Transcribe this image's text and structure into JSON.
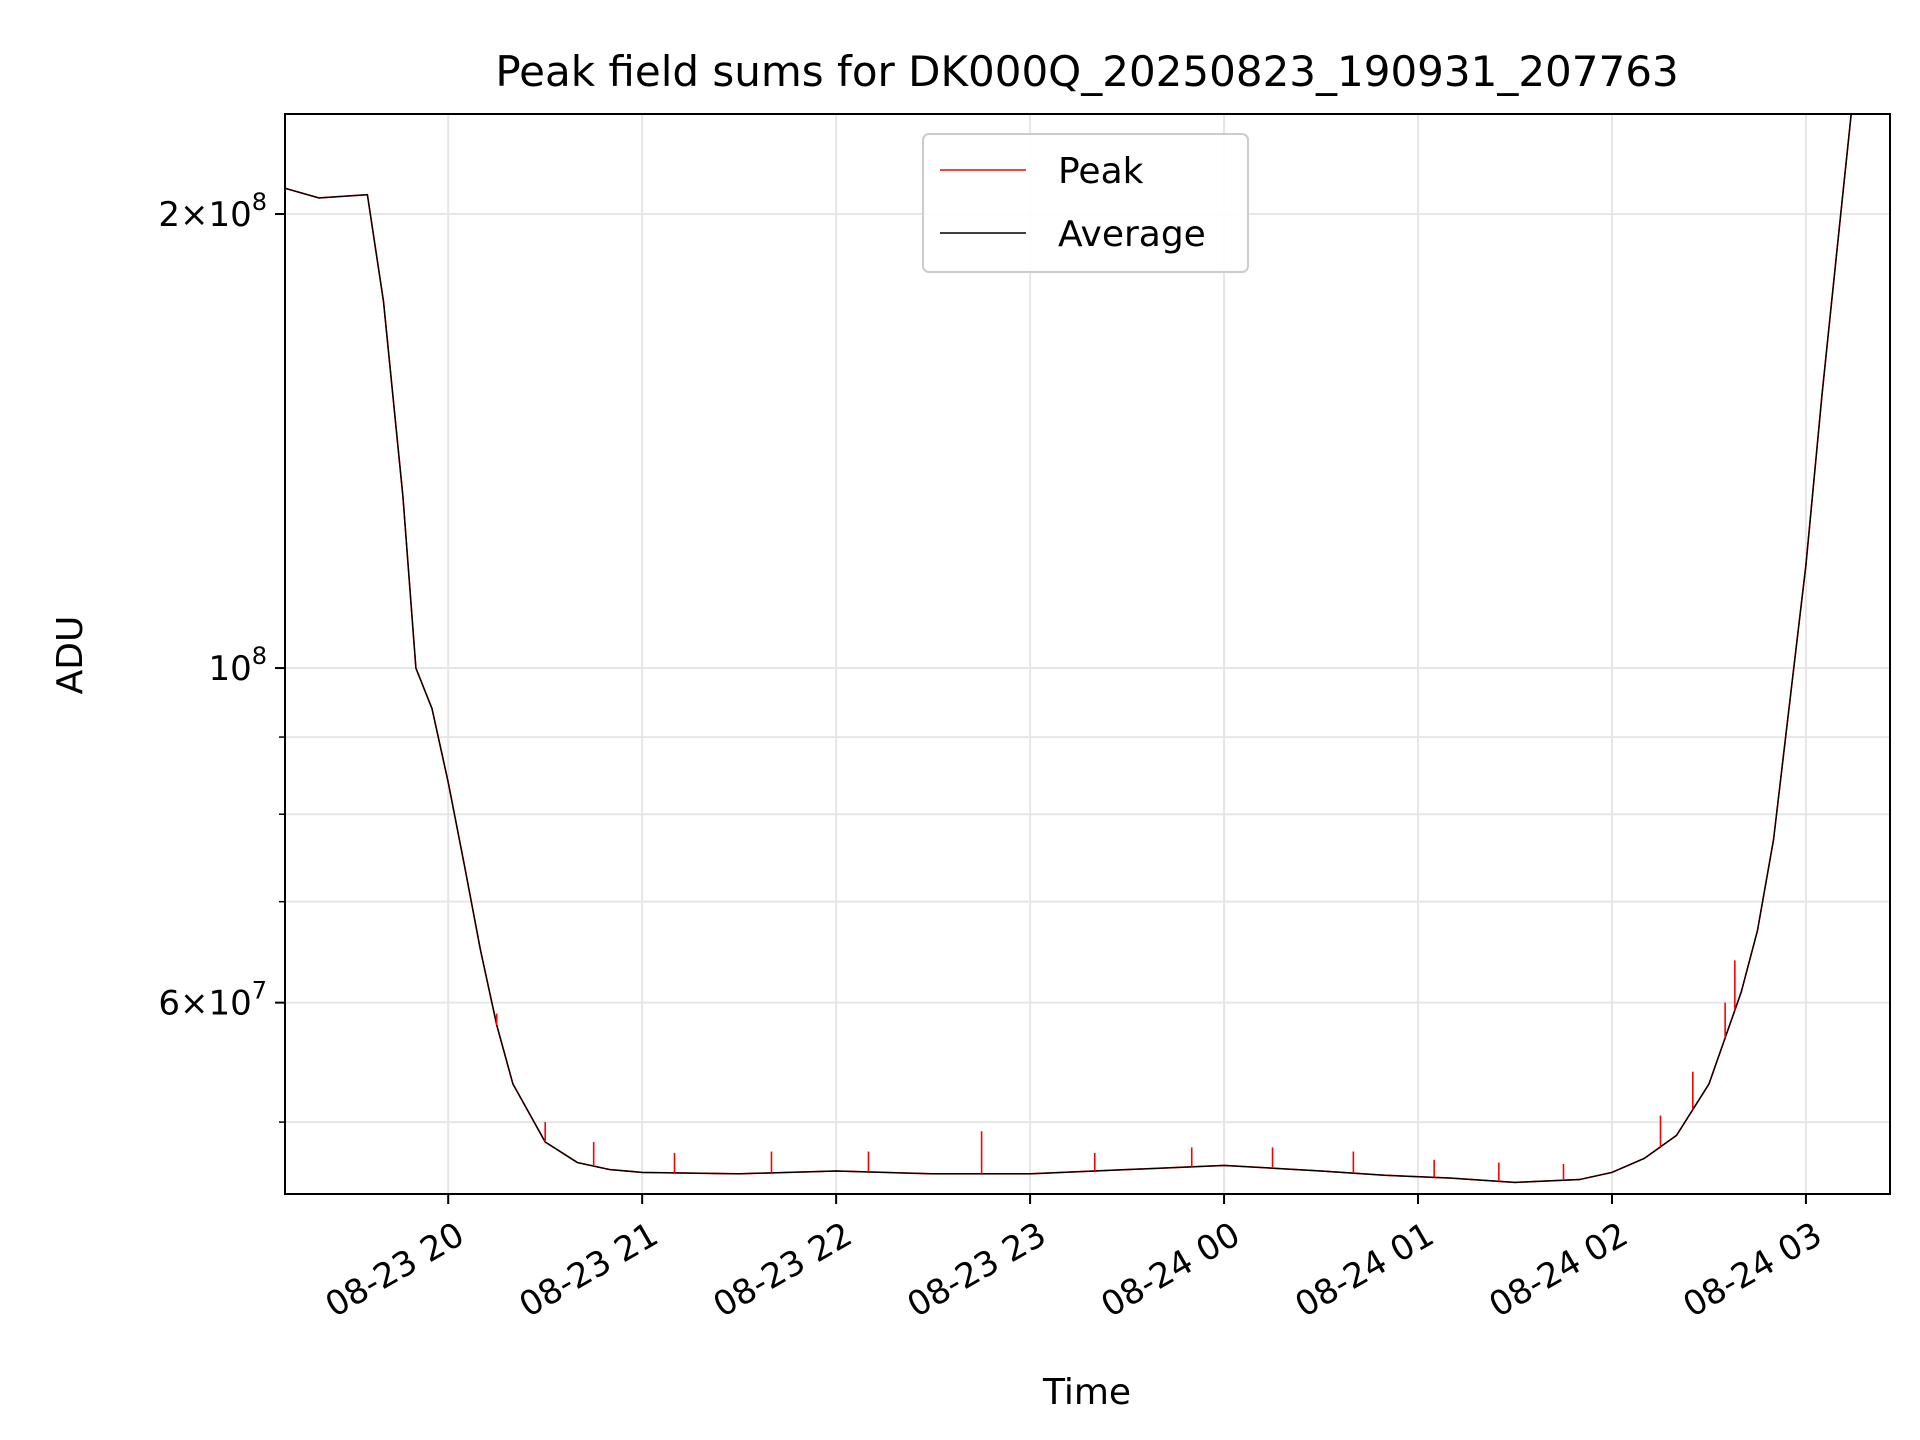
{
  "chart_data": {
    "type": "line",
    "title": "Peak field sums for DK000Q_20250823_190931_207763",
    "xlabel": "Time",
    "ylabel": "ADU",
    "yscale": "log",
    "ylim": [
      44800000,
      233000000
    ],
    "xlim": [
      "2025-08-23 19:09:31",
      "2025-08-24 03:26:00"
    ],
    "grid": true,
    "legend_position": "top-center",
    "x_ticks": [
      {
        "t": "2025-08-23 20:00",
        "label": "08-23 20"
      },
      {
        "t": "2025-08-23 21:00",
        "label": "08-23 21"
      },
      {
        "t": "2025-08-23 22:00",
        "label": "08-23 22"
      },
      {
        "t": "2025-08-23 23:00",
        "label": "08-23 23"
      },
      {
        "t": "2025-08-24 00:00",
        "label": "08-24 00"
      },
      {
        "t": "2025-08-24 01:00",
        "label": "08-24 01"
      },
      {
        "t": "2025-08-24 02:00",
        "label": "08-24 02"
      },
      {
        "t": "2025-08-24 03:00",
        "label": "08-24 03"
      }
    ],
    "y_major_ticks": [
      {
        "value": 60000000,
        "mantissa": "6",
        "exponent": "7"
      },
      {
        "value": 100000000,
        "mantissa": "",
        "exponent": "8"
      },
      {
        "value": 200000000,
        "mantissa": "2",
        "exponent": "8"
      }
    ],
    "y_minor_ticks": [
      50000000,
      70000000,
      80000000,
      90000000
    ],
    "series": [
      {
        "name": "Peak",
        "color": "#ff0000",
        "x": [
          "2025-08-23 19:09:31",
          "2025-08-23 19:20",
          "2025-08-23 19:35",
          "2025-08-23 19:40",
          "2025-08-23 19:46",
          "2025-08-23 19:50",
          "2025-08-23 19:55",
          "2025-08-23 20:00",
          "2025-08-23 20:05",
          "2025-08-23 20:10",
          "2025-08-23 20:15",
          "2025-08-23 20:20",
          "2025-08-23 20:30",
          "2025-08-23 20:40",
          "2025-08-23 20:50",
          "2025-08-23 21:00",
          "2025-08-23 21:30",
          "2025-08-23 22:00",
          "2025-08-23 22:30",
          "2025-08-23 23:00",
          "2025-08-23 23:30",
          "2025-08-24 00:00",
          "2025-08-24 00:30",
          "2025-08-24 00:50",
          "2025-08-24 01:10",
          "2025-08-24 01:30",
          "2025-08-24 01:50",
          "2025-08-24 02:00",
          "2025-08-24 02:10",
          "2025-08-24 02:20",
          "2025-08-24 02:30",
          "2025-08-24 02:40",
          "2025-08-24 02:45",
          "2025-08-24 02:50",
          "2025-08-24 02:55",
          "2025-08-24 03:00",
          "2025-08-24 03:05",
          "2025-08-24 03:10",
          "2025-08-24 03:14",
          "2025-08-24 03:26"
        ],
        "values": [
          208000000,
          205000000,
          206000000,
          175000000,
          130000000,
          100000000,
          94000000,
          84000000,
          74000000,
          65000000,
          58000000,
          53000000,
          48500000,
          47000000,
          46500000,
          46300000,
          46200000,
          46400000,
          46200000,
          46200000,
          46500000,
          46800000,
          46400000,
          46100000,
          45900000,
          45600000,
          45800000,
          46300000,
          47300000,
          49000000,
          53000000,
          61000000,
          67000000,
          77000000,
          95000000,
          117000000,
          152000000,
          193000000,
          233000000,
          233000000
        ]
      },
      {
        "name": "Average",
        "color": "#000000",
        "x": [
          "2025-08-23 19:09:31",
          "2025-08-23 19:20",
          "2025-08-23 19:35",
          "2025-08-23 19:40",
          "2025-08-23 19:46",
          "2025-08-23 19:50",
          "2025-08-23 19:55",
          "2025-08-23 20:00",
          "2025-08-23 20:05",
          "2025-08-23 20:10",
          "2025-08-23 20:15",
          "2025-08-23 20:20",
          "2025-08-23 20:30",
          "2025-08-23 20:40",
          "2025-08-23 20:50",
          "2025-08-23 21:00",
          "2025-08-23 21:30",
          "2025-08-23 22:00",
          "2025-08-23 22:30",
          "2025-08-23 23:00",
          "2025-08-23 23:30",
          "2025-08-24 00:00",
          "2025-08-24 00:30",
          "2025-08-24 00:50",
          "2025-08-24 01:10",
          "2025-08-24 01:30",
          "2025-08-24 01:50",
          "2025-08-24 02:00",
          "2025-08-24 02:10",
          "2025-08-24 02:20",
          "2025-08-24 02:30",
          "2025-08-24 02:40",
          "2025-08-24 02:45",
          "2025-08-24 02:50",
          "2025-08-24 02:55",
          "2025-08-24 03:00",
          "2025-08-24 03:05",
          "2025-08-24 03:10",
          "2025-08-24 03:14",
          "2025-08-24 03:26"
        ],
        "values": [
          208000000,
          205000000,
          206000000,
          175000000,
          130000000,
          100000000,
          94000000,
          84000000,
          74000000,
          65000000,
          58000000,
          53000000,
          48500000,
          47000000,
          46500000,
          46300000,
          46200000,
          46400000,
          46200000,
          46200000,
          46500000,
          46800000,
          46400000,
          46100000,
          45900000,
          45600000,
          45800000,
          46300000,
          47300000,
          49000000,
          53000000,
          61000000,
          67000000,
          77000000,
          95000000,
          117000000,
          152000000,
          193000000,
          233000000,
          233000000
        ]
      }
    ],
    "peak_spikes_above_average": [
      {
        "t": "2025-08-23 20:15",
        "value": 59000000
      },
      {
        "t": "2025-08-23 20:30",
        "value": 50000000
      },
      {
        "t": "2025-08-23 20:45",
        "value": 48500000
      },
      {
        "t": "2025-08-23 21:10",
        "value": 47700000
      },
      {
        "t": "2025-08-23 21:40",
        "value": 47800000
      },
      {
        "t": "2025-08-23 22:10",
        "value": 47800000
      },
      {
        "t": "2025-08-23 22:45",
        "value": 49300000
      },
      {
        "t": "2025-08-23 23:20",
        "value": 47700000
      },
      {
        "t": "2025-08-23 23:50",
        "value": 48100000
      },
      {
        "t": "2025-08-24 00:15",
        "value": 48100000
      },
      {
        "t": "2025-08-24 00:40",
        "value": 47800000
      },
      {
        "t": "2025-08-24 01:05",
        "value": 47200000
      },
      {
        "t": "2025-08-24 01:25",
        "value": 47000000
      },
      {
        "t": "2025-08-24 01:45",
        "value": 46900000
      },
      {
        "t": "2025-08-24 02:15",
        "value": 50500000
      },
      {
        "t": "2025-08-24 02:25",
        "value": 54000000
      },
      {
        "t": "2025-08-24 02:35",
        "value": 60000000
      },
      {
        "t": "2025-08-24 02:38",
        "value": 64000000
      }
    ]
  }
}
